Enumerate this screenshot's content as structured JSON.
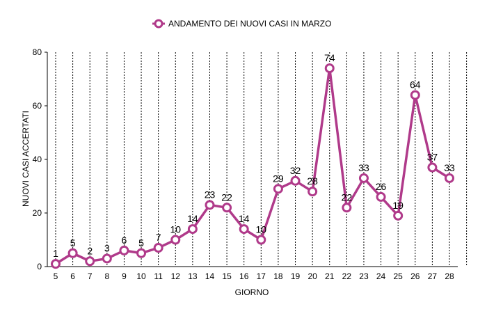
{
  "chart_data": {
    "type": "line",
    "legend": {
      "placement": "top-center"
    },
    "xlabel": "GIORNO",
    "ylabel": "NUOVI CASI ACCERTATI",
    "ylim": [
      0,
      80
    ],
    "yticks": [
      0,
      20,
      40,
      60,
      80
    ],
    "grid": {
      "x": "dotted",
      "y": "none"
    },
    "x": [
      5,
      6,
      7,
      8,
      9,
      10,
      11,
      12,
      13,
      14,
      15,
      16,
      17,
      18,
      19,
      20,
      21,
      22,
      23,
      24,
      25,
      26,
      27,
      28
    ],
    "series": [
      {
        "name": "ANDAMENTO DEI NUOVI CASI IN MARZO",
        "color": "#b03a8a",
        "values": [
          1,
          5,
          2,
          3,
          6,
          5,
          7,
          10,
          14,
          23,
          22,
          14,
          10,
          29,
          32,
          28,
          74,
          22,
          33,
          26,
          19,
          64,
          37,
          33
        ]
      }
    ]
  }
}
